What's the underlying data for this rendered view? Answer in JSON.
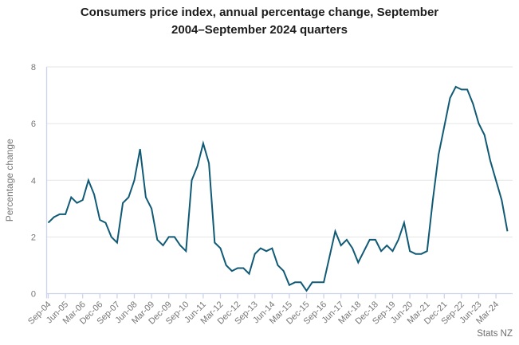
{
  "header": {
    "title_line1": "Consumers price index, annual percentage change, September",
    "title_line2": "2004–September 2024 quarters"
  },
  "attribution": "Stats NZ",
  "chart_data": {
    "type": "line",
    "title": "Consumers price index, annual percentage change, September 2004–September 2024 quarters",
    "xlabel": "",
    "ylabel": "Percentage change",
    "ylim": [
      0,
      8
    ],
    "y_ticks": [
      0,
      2,
      4,
      6,
      8
    ],
    "grid": "horizontal-only",
    "legend": "none",
    "frequency": "quarterly",
    "x_start": "Sep-04",
    "x_end": "Sep-24",
    "x_tick_every_n_points": 3,
    "x_tick_labels": [
      "Sep-04",
      "Jun-05",
      "Mar-06",
      "Dec-06",
      "Sep-07",
      "Jun-08",
      "Mar-09",
      "Dec-09",
      "Sep-10",
      "Jun-11",
      "Mar-12",
      "Dec-12",
      "Sep-13",
      "Jun-14",
      "Mar-15",
      "Dec-15",
      "Sep-16",
      "Jun-17",
      "Mar-18",
      "Dec-18",
      "Sep-19",
      "Jun-20",
      "Mar-21",
      "Dec-21",
      "Sep-22",
      "Jun-23",
      "Mar-24"
    ],
    "series": [
      {
        "name": "CPI annual percentage change",
        "values": [
          2.5,
          2.7,
          2.8,
          2.8,
          3.4,
          3.2,
          3.3,
          4.0,
          3.5,
          2.6,
          2.5,
          2.0,
          1.8,
          3.2,
          3.4,
          4.0,
          5.1,
          3.4,
          3.0,
          1.9,
          1.7,
          2.0,
          2.0,
          1.7,
          1.5,
          4.0,
          4.5,
          5.3,
          4.6,
          1.8,
          1.6,
          1.0,
          0.8,
          0.9,
          0.9,
          0.7,
          1.4,
          1.6,
          1.5,
          1.6,
          1.0,
          0.8,
          0.3,
          0.4,
          0.4,
          0.1,
          0.4,
          0.4,
          0.4,
          1.3,
          2.2,
          1.7,
          1.9,
          1.6,
          1.1,
          1.5,
          1.9,
          1.9,
          1.5,
          1.7,
          1.5,
          1.9,
          2.5,
          1.5,
          1.4,
          1.4,
          1.5,
          3.3,
          4.9,
          5.9,
          6.9,
          7.3,
          7.2,
          7.2,
          6.7,
          6.0,
          5.6,
          4.7,
          4.0,
          3.3,
          2.2
        ]
      }
    ],
    "colors": {
      "line": "#105a76",
      "grid": "#e5e5e5",
      "axis": "#ccd3ec",
      "tick_label": "#767676",
      "title": "#1c1c1c"
    }
  }
}
